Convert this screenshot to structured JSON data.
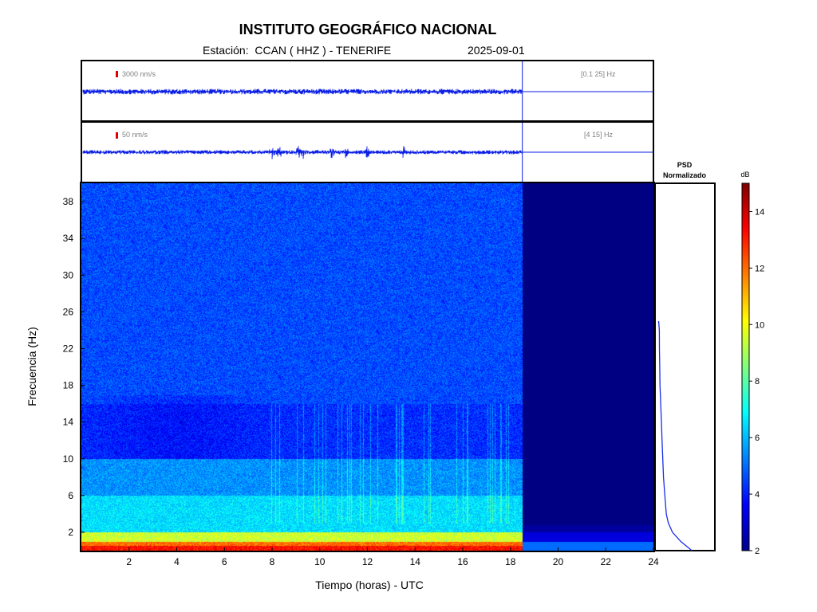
{
  "header": {
    "title": "INSTITUTO GEOGRÁFICO NACIONAL",
    "station_label": "Estación:  CCAN ( HHZ ) - TENERIFE",
    "date": "2025-09-01"
  },
  "chart_data": [
    {
      "type": "line",
      "name": "seismogram-broadband",
      "scale_label": "3000 nm/s",
      "band_label": "[0.1 25] Hz",
      "x_range": [
        0,
        24
      ],
      "data_end_hour": 18.5,
      "colors": {
        "trace": "#0a1ee6",
        "scale_bar": "#e00000",
        "label": "#808080"
      }
    },
    {
      "type": "line",
      "name": "seismogram-filtered",
      "scale_label": "50 nm/s",
      "band_label": "[4 15] Hz",
      "x_range": [
        0,
        24
      ],
      "data_end_hour": 18.5,
      "events_hours": [
        8.0,
        8.3,
        9.1,
        9.3,
        10.5,
        11.1,
        12.0,
        13.5
      ],
      "colors": {
        "trace": "#0a1ee6",
        "scale_bar": "#e00000",
        "label": "#808080"
      }
    },
    {
      "type": "heatmap",
      "name": "spectrogram",
      "xlabel": "Tiempo (horas) - UTC",
      "ylabel": "Frecuencia  (Hz)",
      "xlim": [
        0,
        24
      ],
      "ylim": [
        0,
        40
      ],
      "xticks": [
        2,
        4,
        6,
        8,
        10,
        12,
        14,
        16,
        18,
        20,
        22,
        24
      ],
      "yticks": [
        2,
        6,
        10,
        14,
        18,
        22,
        26,
        30,
        34,
        38
      ],
      "data_end_hour": 18.5,
      "colormap": "jet",
      "colorbar": {
        "label": "dB",
        "range": [
          2,
          15
        ],
        "ticks": [
          2,
          4,
          6,
          8,
          10,
          12,
          14
        ]
      },
      "band_profile_db": [
        {
          "f": [
            0,
            1
          ],
          "db": 12
        },
        {
          "f": [
            1,
            2
          ],
          "db": 9.5
        },
        {
          "f": [
            2,
            6
          ],
          "db": 6.5
        },
        {
          "f": [
            6,
            10
          ],
          "db": 5.5
        },
        {
          "f": [
            10,
            16
          ],
          "db": 4.2
        },
        {
          "f": [
            16,
            40
          ],
          "db": 4.6
        }
      ]
    },
    {
      "type": "line",
      "name": "psd-normalizado",
      "title": "PSD\nNormalizado",
      "freq_hz": [
        0,
        1,
        2,
        3,
        4,
        6,
        8,
        10,
        12,
        14,
        16,
        18,
        20,
        22,
        24,
        25
      ],
      "value": [
        0.26,
        0.18,
        0.12,
        0.09,
        0.075,
        0.065,
        0.055,
        0.05,
        0.045,
        0.04,
        0.035,
        0.03,
        0.028,
        0.026,
        0.025,
        0.02
      ],
      "colors": {
        "line": "#1a2ee8"
      }
    }
  ]
}
